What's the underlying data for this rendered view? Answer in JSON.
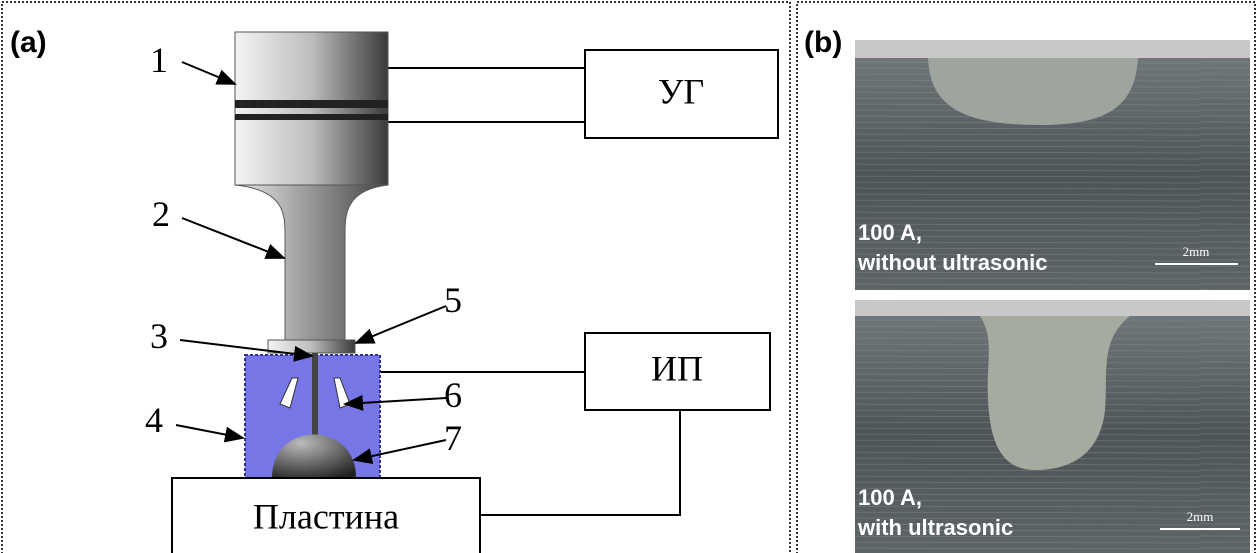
{
  "panels": [
    {
      "label": "(a)",
      "parts": [
        "1",
        "2",
        "3",
        "4",
        "5",
        "6",
        "7"
      ],
      "blocks": [
        "УГ",
        "ИП",
        "Пластина"
      ]
    },
    {
      "label": "(b)",
      "images": [
        {
          "lines": [
            "100 A,",
            "without ultrasonic"
          ],
          "scale": "2mm"
        },
        {
          "lines": [
            "100 A,",
            "with ultrasonic"
          ],
          "scale": "2mm"
        }
      ]
    }
  ]
}
